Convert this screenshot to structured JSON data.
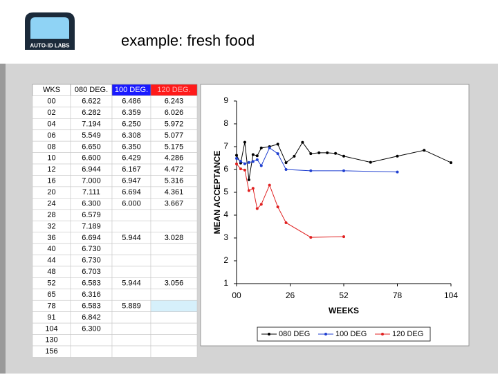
{
  "header": {
    "title": "example: fresh food",
    "logo_text": "AUTO-ID LABS"
  },
  "table": {
    "columns": [
      "WKS",
      "080 DEG.",
      "100 DEG.",
      "120 DEG."
    ],
    "rows": [
      [
        "00",
        "6.622",
        "6.486",
        "6.243"
      ],
      [
        "02",
        "6.282",
        "6.359",
        "6.026"
      ],
      [
        "04",
        "7.194",
        "6.250",
        "5.972"
      ],
      [
        "06",
        "5.549",
        "6.308",
        "5.077"
      ],
      [
        "08",
        "6.650",
        "6.350",
        "5.175"
      ],
      [
        "10",
        "6.600",
        "6.429",
        "4.286"
      ],
      [
        "12",
        "6.944",
        "6.167",
        "4.472"
      ],
      [
        "16",
        "7.000",
        "6.947",
        "5.316"
      ],
      [
        "20",
        "7.111",
        "6.694",
        "4.361"
      ],
      [
        "24",
        "6.300",
        "6.000",
        "3.667"
      ],
      [
        "28",
        "6.579",
        null,
        null
      ],
      [
        "32",
        "7.189",
        null,
        null
      ],
      [
        "36",
        "6.694",
        "5.944",
        "3.028"
      ],
      [
        "40",
        "6.730",
        null,
        null
      ],
      [
        "44",
        "6.730",
        null,
        null
      ],
      [
        "48",
        "6.703",
        null,
        null
      ],
      [
        "52",
        "6.583",
        "5.944",
        "3.056"
      ],
      [
        "65",
        "6.316",
        null,
        null
      ],
      [
        "78",
        "6.583",
        "5.889",
        null
      ],
      [
        "91",
        "6.842",
        null,
        null
      ],
      [
        "104",
        "6.300",
        null,
        null
      ],
      [
        "130",
        null,
        null,
        null
      ],
      [
        "156",
        null,
        null,
        null
      ]
    ]
  },
  "chart_data": {
    "type": "line",
    "x_label": "WEEKS",
    "y_label": "MEAN ACCEPTANCE",
    "xlim": [
      0,
      104
    ],
    "xticks": [
      {
        "value": 0,
        "label": "00"
      },
      26,
      52,
      78,
      104
    ],
    "ylim": [
      1,
      9
    ],
    "yticks": [
      1,
      2,
      3,
      4,
      5,
      6,
      7,
      8,
      9
    ],
    "grid": false,
    "legend": "bottom",
    "series": [
      {
        "name": "080 DEG",
        "color": "#000000",
        "x": [
          0,
          2,
          4,
          6,
          8,
          10,
          12,
          16,
          20,
          24,
          28,
          32,
          36,
          40,
          44,
          48,
          52,
          65,
          78,
          91,
          104
        ],
        "values": [
          6.622,
          6.282,
          7.194,
          5.549,
          6.65,
          6.6,
          6.944,
          7.0,
          7.111,
          6.3,
          6.579,
          7.189,
          6.694,
          6.73,
          6.73,
          6.703,
          6.583,
          6.316,
          6.583,
          6.842,
          6.3
        ]
      },
      {
        "name": "100 DEG",
        "color": "#1f3fd0",
        "x": [
          0,
          2,
          4,
          6,
          8,
          10,
          12,
          16,
          20,
          24,
          36,
          52,
          78
        ],
        "values": [
          6.486,
          6.359,
          6.25,
          6.308,
          6.35,
          6.429,
          6.167,
          6.947,
          6.694,
          6.0,
          5.944,
          5.944,
          5.889
        ]
      },
      {
        "name": "120 DEG",
        "color": "#e02020",
        "x": [
          0,
          2,
          4,
          6,
          8,
          10,
          12,
          16,
          20,
          24,
          36,
          52
        ],
        "values": [
          6.243,
          6.026,
          5.972,
          5.077,
          5.175,
          4.286,
          4.472,
          5.316,
          4.361,
          3.667,
          3.028,
          3.056
        ]
      }
    ]
  }
}
